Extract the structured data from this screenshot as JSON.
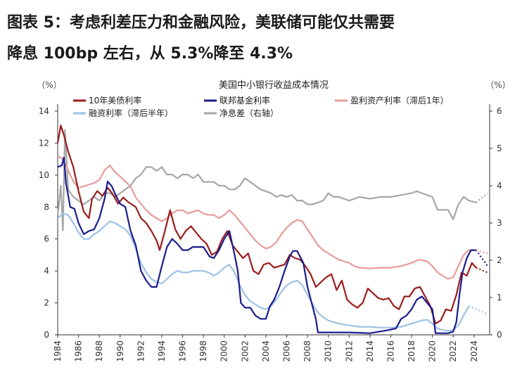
{
  "header": {
    "line1": "图表 5：考虑利差压力和金融风险，美联储可能仅共需要",
    "line2": "降息 100bp 左右，从 5.3%降至 4.3%"
  },
  "chart_data": {
    "type": "line",
    "title": "美国中小银行收益成本情况",
    "left_unit": "（%）",
    "right_unit": "（%）",
    "ylim_left": [
      0,
      14
    ],
    "ylim_right": [
      0,
      6
    ],
    "xlim": [
      1984,
      2025.5
    ],
    "yticks_left": [
      0,
      2,
      4,
      6,
      8,
      10,
      12,
      14
    ],
    "yticks_right": [
      0,
      1,
      2,
      3,
      4,
      5,
      6
    ],
    "xticks": [
      "1984",
      "1986",
      "1988",
      "1990",
      "1992",
      "1994",
      "1996",
      "1998",
      "2000",
      "2002",
      "2004",
      "2006",
      "2008",
      "2010",
      "2012",
      "2014",
      "2016",
      "2018",
      "2020",
      "2022",
      "2024"
    ],
    "series": [
      {
        "name": "10年美债利率",
        "color": "#9b1c1c",
        "axis": "left",
        "x": [
          1984,
          1984.3,
          1984.6,
          1985,
          1985.5,
          1986,
          1986.5,
          1987,
          1987.3,
          1987.8,
          1988.3,
          1988.8,
          1989.3,
          1989.8,
          1990.3,
          1990.8,
          1991.5,
          1992,
          1992.5,
          1993,
          1993.5,
          1993.8,
          1994.3,
          1994.8,
          1995.3,
          1995.8,
          1996.3,
          1996.8,
          1997.3,
          1997.8,
          1998.3,
          1998.8,
          1999.3,
          1999.8,
          2000.3,
          2000.8,
          2001.3,
          2001.8,
          2002.3,
          2002.8,
          2003.3,
          2003.8,
          2004.3,
          2004.8,
          2005.3,
          2005.8,
          2006.3,
          2006.8,
          2007.3,
          2007.8,
          2008.3,
          2008.8,
          2009.3,
          2009.8,
          2010.3,
          2010.8,
          2011.3,
          2011.8,
          2012.3,
          2012.8,
          2013.3,
          2013.8,
          2014.3,
          2014.8,
          2015.3,
          2015.8,
          2016.3,
          2016.8,
          2017.3,
          2017.8,
          2018.3,
          2018.8,
          2019.3,
          2019.8,
          2020.3,
          2020.8,
          2021.3,
          2021.8,
          2022.3,
          2022.8,
          2023.3,
          2023.8,
          2024.2
        ],
        "y": [
          12,
          13.1,
          12.5,
          11.5,
          10.5,
          9,
          7.7,
          7.3,
          8.5,
          9,
          8.7,
          9.2,
          8.8,
          8.2,
          8.6,
          8.3,
          8,
          7.3,
          7,
          6.5,
          5.9,
          5.3,
          6.5,
          7.8,
          6.6,
          6,
          6.5,
          6.8,
          6.4,
          6,
          5.7,
          5,
          5.2,
          6,
          6.5,
          5.6,
          5.2,
          4.8,
          5.1,
          4.0,
          3.8,
          4.4,
          4.5,
          4.2,
          4.3,
          4.4,
          5,
          4.8,
          4.7,
          4.3,
          3.8,
          3,
          3.3,
          3.6,
          3.8,
          2.8,
          3.4,
          2.2,
          1.9,
          1.7,
          2.0,
          2.9,
          2.6,
          2.3,
          2.2,
          2.3,
          1.8,
          1.6,
          2.4,
          2.4,
          2.9,
          3.0,
          2.4,
          1.8,
          0.7,
          0.9,
          1.6,
          1.5,
          2.5,
          3.9,
          3.7,
          4.5,
          4.2
        ]
      },
      {
        "name": "联邦基金利率",
        "color": "#1a1c8c",
        "axis": "left",
        "x": [
          1984,
          1984.4,
          1984.6,
          1984.8,
          1985.2,
          1985.6,
          1986,
          1986.5,
          1987,
          1987.5,
          1988,
          1988.5,
          1988.8,
          1989.2,
          1989.6,
          1990,
          1990.5,
          1991,
          1991.5,
          1992,
          1992.5,
          1993,
          1993.5,
          1994,
          1994.5,
          1995,
          1995.5,
          1996,
          1996.5,
          1997,
          1997.5,
          1998,
          1998.6,
          1999,
          1999.5,
          2000,
          2000.5,
          2001,
          2001.3,
          2001.6,
          2002,
          2002.5,
          2003,
          2003.5,
          2004,
          2004.4,
          2004.8,
          2005.3,
          2005.8,
          2006.3,
          2006.6,
          2007,
          2007.6,
          2008,
          2008.4,
          2008.8,
          2009,
          2010,
          2012,
          2014,
          2015.8,
          2016.5,
          2017,
          2017.5,
          2018,
          2018.5,
          2019,
          2019.5,
          2020,
          2020.3,
          2021,
          2021.5,
          2022,
          2022.3,
          2022.6,
          2022.9,
          2023.3,
          2023.7,
          2024.2
        ],
        "y": [
          10.5,
          10.6,
          11.1,
          9.5,
          8,
          7.9,
          7.0,
          6.3,
          6.5,
          6.6,
          7.3,
          8.5,
          9.6,
          9.3,
          8.7,
          8.2,
          8.0,
          6.5,
          5.6,
          4,
          3.4,
          3.0,
          3.0,
          4.3,
          5.5,
          6.0,
          5.7,
          5.3,
          5.3,
          5.5,
          5.5,
          5.5,
          4.9,
          4.8,
          5.3,
          6.0,
          6.5,
          5.0,
          4.0,
          2.0,
          1.7,
          1.7,
          1.2,
          1.0,
          1.0,
          1.8,
          2.2,
          3.0,
          4.0,
          4.9,
          5.25,
          5.25,
          4.5,
          3.0,
          2.0,
          1.0,
          0.15,
          0.15,
          0.15,
          0.1,
          0.3,
          0.4,
          1.0,
          1.2,
          1.6,
          2.2,
          2.4,
          2.0,
          1.6,
          0.1,
          0.1,
          0.1,
          0.2,
          0.8,
          2.5,
          3.9,
          4.8,
          5.3,
          5.3
        ]
      },
      {
        "name": "盈利资产利率（滞后1年）",
        "color": "#e79b9b",
        "axis": "left",
        "x": [
          1984,
          1984.5,
          1985,
          1985.5,
          1986,
          1986.5,
          1987,
          1987.5,
          1988,
          1988.5,
          1989,
          1989.5,
          1990,
          1990.5,
          1991,
          1991.5,
          1992,
          1992.5,
          1993,
          1993.5,
          1994,
          1994.5,
          1995,
          1995.5,
          1996,
          1996.5,
          1997,
          1997.5,
          1998,
          1998.5,
          1999,
          1999.5,
          2000,
          2000.5,
          2001,
          2001.5,
          2002,
          2002.5,
          2003,
          2003.5,
          2004,
          2004.5,
          2005,
          2005.5,
          2006,
          2006.5,
          2007,
          2007.5,
          2008,
          2008.5,
          2009,
          2009.5,
          2010,
          2010.5,
          2011,
          2011.5,
          2012,
          2012.5,
          2013,
          2014,
          2015,
          2016,
          2017,
          2018,
          2018.7,
          2019.5,
          2020,
          2020.5,
          2021,
          2021.5,
          2022,
          2022.5,
          2023,
          2023.5,
          2024.2
        ],
        "y": [
          11.2,
          11,
          10.3,
          9.6,
          9.2,
          9.3,
          9.4,
          9.5,
          9.7,
          10.3,
          10.6,
          10.2,
          9.9,
          9.6,
          9.3,
          8.6,
          8.2,
          7.8,
          7.5,
          7.3,
          7.1,
          7.3,
          7.6,
          7.8,
          7.8,
          7.6,
          7.7,
          7.8,
          7.6,
          7.5,
          7.5,
          7.3,
          7.5,
          7.8,
          7.5,
          7.1,
          6.7,
          6.3,
          5.9,
          5.6,
          5.4,
          5.5,
          5.8,
          6.3,
          6.7,
          7.0,
          7.2,
          7.1,
          6.6,
          6.1,
          5.6,
          5.3,
          5.1,
          4.9,
          4.7,
          4.6,
          4.5,
          4.3,
          4.2,
          4.15,
          4.2,
          4.2,
          4.3,
          4.5,
          4.7,
          4.6,
          4.3,
          3.9,
          3.7,
          3.5,
          3.6,
          4.3,
          5.0,
          5.3,
          5.3
        ]
      },
      {
        "name": "融资利率（滞后半年）",
        "color": "#9ec2e6",
        "axis": "left",
        "x": [
          1984,
          1984.5,
          1985,
          1985.5,
          1986,
          1986.5,
          1987,
          1987.5,
          1988,
          1988.5,
          1989,
          1989.5,
          1990,
          1990.5,
          1991,
          1991.5,
          1992,
          1992.5,
          1993,
          1993.5,
          1994,
          1994.5,
          1995,
          1995.5,
          1996,
          1996.5,
          1997,
          1997.5,
          1998,
          1998.5,
          1999,
          1999.5,
          2000,
          2000.5,
          2001,
          2001.5,
          2002,
          2002.5,
          2003,
          2003.5,
          2004,
          2004.5,
          2005,
          2005.5,
          2006,
          2006.5,
          2007,
          2007.5,
          2008,
          2008.5,
          2009,
          2009.5,
          2010,
          2011,
          2012,
          2013,
          2014,
          2015,
          2016,
          2017,
          2018,
          2019,
          2019.5,
          2020,
          2020.5,
          2021,
          2021.5,
          2022,
          2022.5,
          2023,
          2023.5
        ],
        "y": [
          7.3,
          7.6,
          7.5,
          7.0,
          6.4,
          6.0,
          6.0,
          6.3,
          6.5,
          6.8,
          7.1,
          7.0,
          6.8,
          6.6,
          6.2,
          5.4,
          4.5,
          3.9,
          3.5,
          3.3,
          3.2,
          3.5,
          3.8,
          4.0,
          3.9,
          3.9,
          4.0,
          4.0,
          4.0,
          3.9,
          3.7,
          3.9,
          4.2,
          4.4,
          3.9,
          3.1,
          2.5,
          2.1,
          1.9,
          1.7,
          1.6,
          1.8,
          2.2,
          2.7,
          3.1,
          3.3,
          3.4,
          3.1,
          2.5,
          1.9,
          1.4,
          1.1,
          0.9,
          0.7,
          0.6,
          0.5,
          0.5,
          0.45,
          0.45,
          0.5,
          0.7,
          0.9,
          0.95,
          0.7,
          0.4,
          0.3,
          0.25,
          0.3,
          0.6,
          1.2,
          1.8
        ]
      },
      {
        "name": "净息差（右轴）",
        "color": "#a6a6a6",
        "axis": "right",
        "x": [
          1984,
          1984.3,
          1984.5,
          1984.7,
          1985,
          1985.5,
          1986,
          1986.5,
          1987,
          1987.5,
          1988,
          1988.5,
          1989,
          1989.5,
          1990,
          1990.5,
          1991,
          1991.5,
          1992,
          1992.5,
          1993,
          1993.5,
          1994,
          1994.5,
          1995,
          1995.5,
          1996,
          1996.5,
          1997,
          1997.5,
          1998,
          1998.5,
          1999,
          1999.5,
          2000,
          2000.5,
          2001,
          2001.5,
          2002,
          2002.5,
          2003,
          2003.5,
          2004,
          2004.5,
          2005,
          2005.5,
          2006,
          2006.5,
          2007,
          2007.5,
          2008,
          2008.5,
          2009,
          2009.5,
          2010,
          2010.5,
          2011,
          2012,
          2013,
          2014,
          2015,
          2016,
          2017,
          2018,
          2018.5,
          2019,
          2019.5,
          2020,
          2020.5,
          2021,
          2021.5,
          2022,
          2022.5,
          2023,
          2023.5,
          2024.2
        ],
        "y": [
          3.2,
          4.0,
          2.8,
          5.5,
          3.9,
          3.7,
          3.6,
          3.5,
          3.6,
          3.7,
          3.6,
          3.8,
          3.8,
          3.7,
          3.8,
          3.9,
          4.0,
          4.2,
          4.3,
          4.5,
          4.5,
          4.4,
          4.5,
          4.3,
          4.3,
          4.2,
          4.3,
          4.3,
          4.2,
          4.3,
          4.1,
          4.1,
          4.1,
          4.0,
          4.0,
          3.9,
          3.9,
          4.0,
          4.2,
          4.1,
          4.0,
          3.9,
          3.85,
          3.8,
          3.7,
          3.75,
          3.7,
          3.75,
          3.6,
          3.6,
          3.5,
          3.5,
          3.55,
          3.6,
          3.8,
          3.7,
          3.7,
          3.6,
          3.7,
          3.65,
          3.7,
          3.7,
          3.75,
          3.8,
          3.85,
          3.8,
          3.75,
          3.7,
          3.35,
          3.35,
          3.35,
          3.1,
          3.5,
          3.7,
          3.6,
          3.55
        ]
      }
    ],
    "projections": [
      {
        "series": "10年美债利率",
        "color": "#9b1c1c",
        "axis": "left",
        "x": [
          2024.2,
          2025.3
        ],
        "y": [
          4.2,
          3.9
        ]
      },
      {
        "series": "联邦基金利率",
        "color": "#1a1c8c",
        "axis": "left",
        "x": [
          2024.2,
          2025.3
        ],
        "y": [
          5.3,
          4.3
        ]
      },
      {
        "series": "盈利资产利率（滞后1年）",
        "color": "#e79b9b",
        "axis": "left",
        "x": [
          2024.2,
          2025.3
        ],
        "y": [
          5.3,
          5.1
        ]
      },
      {
        "series": "融资利率（滞后半年）",
        "color": "#9ec2e6",
        "axis": "left",
        "x": [
          2023.5,
          2025.3
        ],
        "y": [
          1.8,
          1.3
        ]
      },
      {
        "series": "净息差（右轴）",
        "color": "#a6a6a6",
        "axis": "right",
        "x": [
          2024.2,
          2025.3
        ],
        "y": [
          3.55,
          3.8
        ]
      }
    ]
  }
}
